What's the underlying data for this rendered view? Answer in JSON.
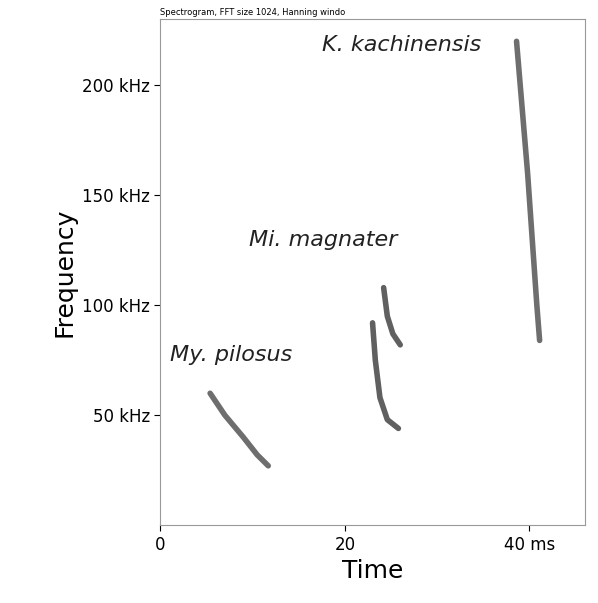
{
  "chart_data": {
    "type": "line",
    "title": "Spectrogram, FFT size 1024, Hanning windo",
    "x_label": "Time",
    "y_label": "Frequency",
    "xlim": [
      0,
      46
    ],
    "ylim": [
      0,
      230
    ],
    "xticks": [
      0,
      20,
      {
        "value": 40,
        "label": "40 ms"
      }
    ],
    "yticks": [
      {
        "value": 50,
        "label": "50 kHz"
      },
      {
        "value": 100,
        "label": "100 kHz"
      },
      {
        "value": 150,
        "label": "150 kHz"
      },
      {
        "value": 200,
        "label": "200 kHz"
      }
    ],
    "grid": false,
    "series": [
      {
        "name": "My. pilosus",
        "color": "#555555",
        "x": [
          5.4,
          7.0,
          9.0,
          10.5,
          11.7
        ],
        "values": [
          60,
          50,
          40,
          32,
          27
        ]
      },
      {
        "name": "Mi. magnater",
        "color": "#444444",
        "x": [
          23.0,
          23.3,
          23.8,
          24.6,
          25.8,
          null,
          24.2,
          24.6,
          25.2,
          26.0
        ],
        "values": [
          92,
          75,
          58,
          48,
          44,
          null,
          108,
          95,
          87,
          82
        ]
      },
      {
        "name": "K. kachinensis",
        "color": "#555555",
        "x": [
          38.6,
          39.2,
          39.8,
          40.3,
          40.8,
          41.1
        ],
        "values": [
          220,
          190,
          160,
          130,
          100,
          84
        ]
      }
    ]
  }
}
